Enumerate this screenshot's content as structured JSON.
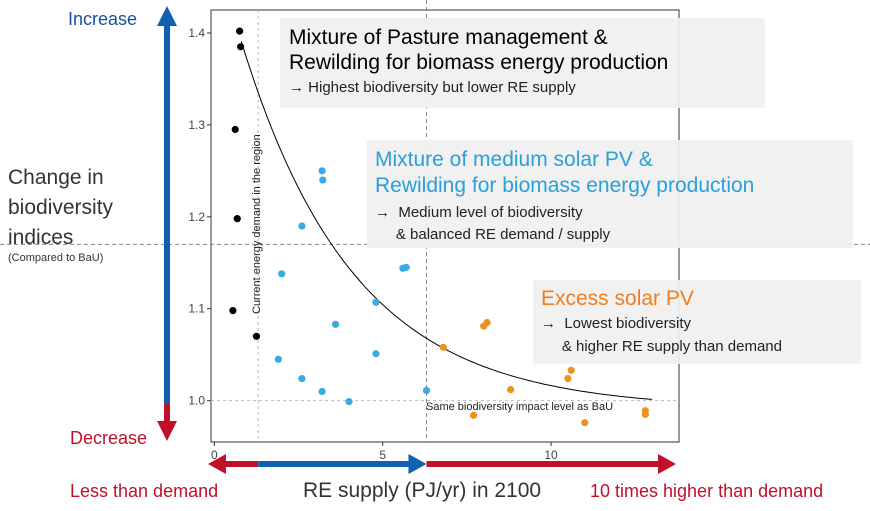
{
  "chart_data": {
    "type": "scatter",
    "xlabel": "RE supply (PJ/yr) in 2100",
    "ylabel": "Change in biodiversity indices",
    "ylabel_note": "(Compared to BaU)",
    "xlim": [
      -0.1,
      13.8
    ],
    "ylim": [
      0.955,
      1.425
    ],
    "x_ticks": [
      0,
      5,
      10
    ],
    "y_ticks": [
      1.0,
      1.1,
      1.2,
      1.3,
      1.4
    ],
    "grid": false,
    "series": [
      {
        "color": "#000000",
        "points": [
          [
            0.75,
            1.402
          ],
          [
            0.78,
            1.385
          ],
          [
            0.62,
            1.295
          ],
          [
            0.68,
            1.198
          ],
          [
            0.55,
            1.098
          ],
          [
            1.25,
            1.07
          ]
        ]
      },
      {
        "color": "#3aaae0",
        "points": [
          [
            3.2,
            1.25
          ],
          [
            3.22,
            1.24
          ],
          [
            2.6,
            1.19
          ],
          [
            2.0,
            1.138
          ],
          [
            5.7,
            1.145
          ],
          [
            5.6,
            1.144
          ],
          [
            4.8,
            1.107
          ],
          [
            3.6,
            1.083
          ],
          [
            1.9,
            1.045
          ],
          [
            4.8,
            1.051
          ],
          [
            2.6,
            1.024
          ],
          [
            3.2,
            1.01
          ],
          [
            4.0,
            0.999
          ],
          [
            6.3,
            1.011
          ]
        ]
      },
      {
        "color": "#f0901e",
        "points": [
          [
            8.1,
            1.085
          ],
          [
            8.0,
            1.081
          ],
          [
            6.8,
            1.058
          ],
          [
            10.6,
            1.033
          ],
          [
            10.5,
            1.024
          ],
          [
            8.8,
            1.012
          ],
          [
            12.8,
            0.989
          ],
          [
            12.8,
            0.985
          ],
          [
            7.7,
            0.984
          ],
          [
            11.0,
            0.976
          ]
        ]
      }
    ],
    "trend_curve": {
      "color": "#000000",
      "x_from": 0.8,
      "x_to": 13.0
    },
    "reference_lines": {
      "horizontal": {
        "y": 1.0,
        "label": "Same biodiversity impact level as BaU"
      },
      "vertical": {
        "x": 1.3,
        "label": "Current energy demand in the region"
      },
      "crosshair_x": 6.3,
      "crosshair_y": 1.17
    },
    "annotations": [
      {
        "title": "Mixture of Pasture management &",
        "title2": "Rewilding for biomass energy production",
        "title_color": "#000000",
        "lines": [
          "→ Highest biodiversity but lower RE supply"
        ]
      },
      {
        "title": "Mixture of medium solar PV &",
        "title2": "Rewilding for biomass energy production",
        "title_color": "#2a9fd8",
        "lines": [
          "→  Medium level of biodiversity",
          "     & balanced RE demand / supply"
        ]
      },
      {
        "title": "Excess solar PV",
        "title2": "",
        "title_color": "#f07d1e",
        "lines": [
          "→  Lowest biodiversity",
          "     & higher RE supply than demand"
        ]
      }
    ],
    "arrows": {
      "increase": "Increase",
      "decrease": "Decrease",
      "less_than_demand": "Less than demand",
      "ten_times_higher": "10 times higher than demand"
    }
  },
  "colors": {
    "blue_arrow": "#1060b0",
    "red_arrow": "#c0102a",
    "increase_text": "#1a4f9a",
    "red_text": "#c0102a"
  }
}
